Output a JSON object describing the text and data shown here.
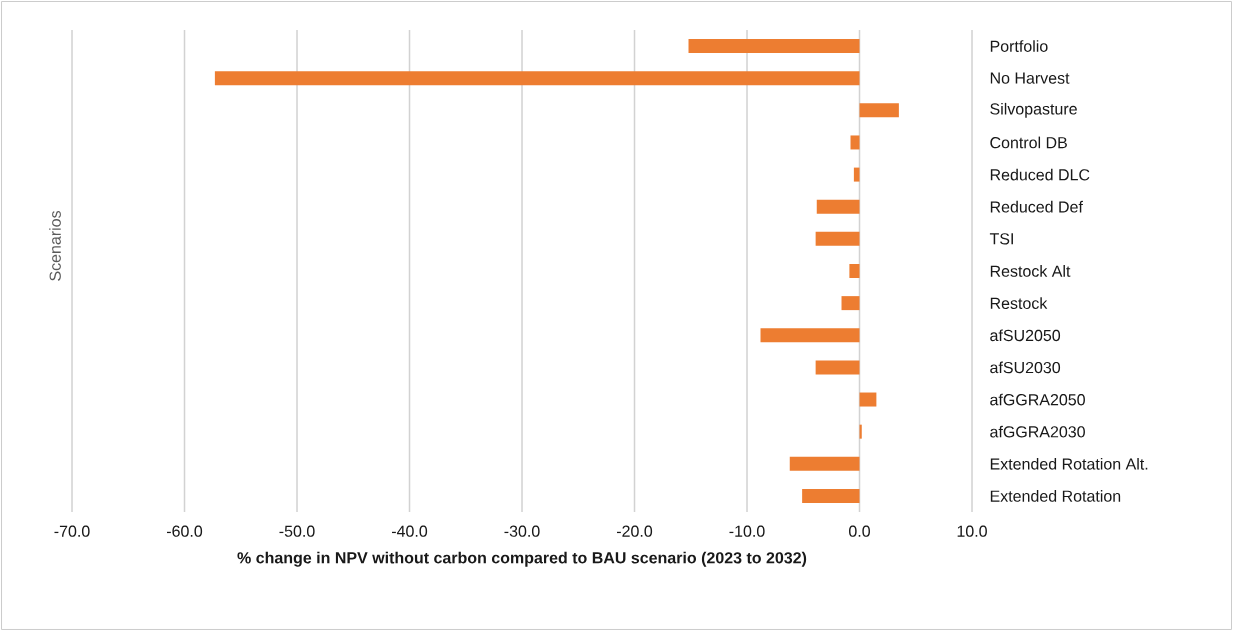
{
  "chart_data": {
    "type": "bar",
    "orientation": "horizontal",
    "xlabel": "% change in NPV without carbon compared to BAU scenario (2023 to 2032)",
    "ylabel": "Scenarios",
    "categories": [
      "Portfolio",
      "No Harvest",
      "Silvopasture",
      "Control DB",
      "Reduced DLC",
      "Reduced Def",
      "TSI",
      "Restock Alt",
      "Restock",
      "afSU2050",
      "afSU2030",
      "afGGRA2050",
      "afGGRA2030",
      "Extended Rotation Alt.",
      "Extended Rotation"
    ],
    "values": [
      -15.2,
      -57.3,
      3.5,
      -0.8,
      -0.5,
      -3.8,
      -3.9,
      -0.9,
      -1.6,
      -8.8,
      -3.9,
      1.5,
      0.2,
      -6.2,
      -5.1
    ],
    "color": "#ed7d31",
    "xlim": [
      -70,
      10
    ],
    "xticks": [
      {
        "value": -70,
        "label": "-70.0"
      },
      {
        "value": -60,
        "label": "-60.0"
      },
      {
        "value": -50,
        "label": "-50.0"
      },
      {
        "value": -40,
        "label": "-40.0"
      },
      {
        "value": -30,
        "label": "-30.0"
      },
      {
        "value": -20,
        "label": "-20.0"
      },
      {
        "value": -10,
        "label": "-10.0"
      },
      {
        "value": 0,
        "label": "0.0"
      },
      {
        "value": 10,
        "label": "10.0"
      }
    ],
    "grid": "x"
  }
}
